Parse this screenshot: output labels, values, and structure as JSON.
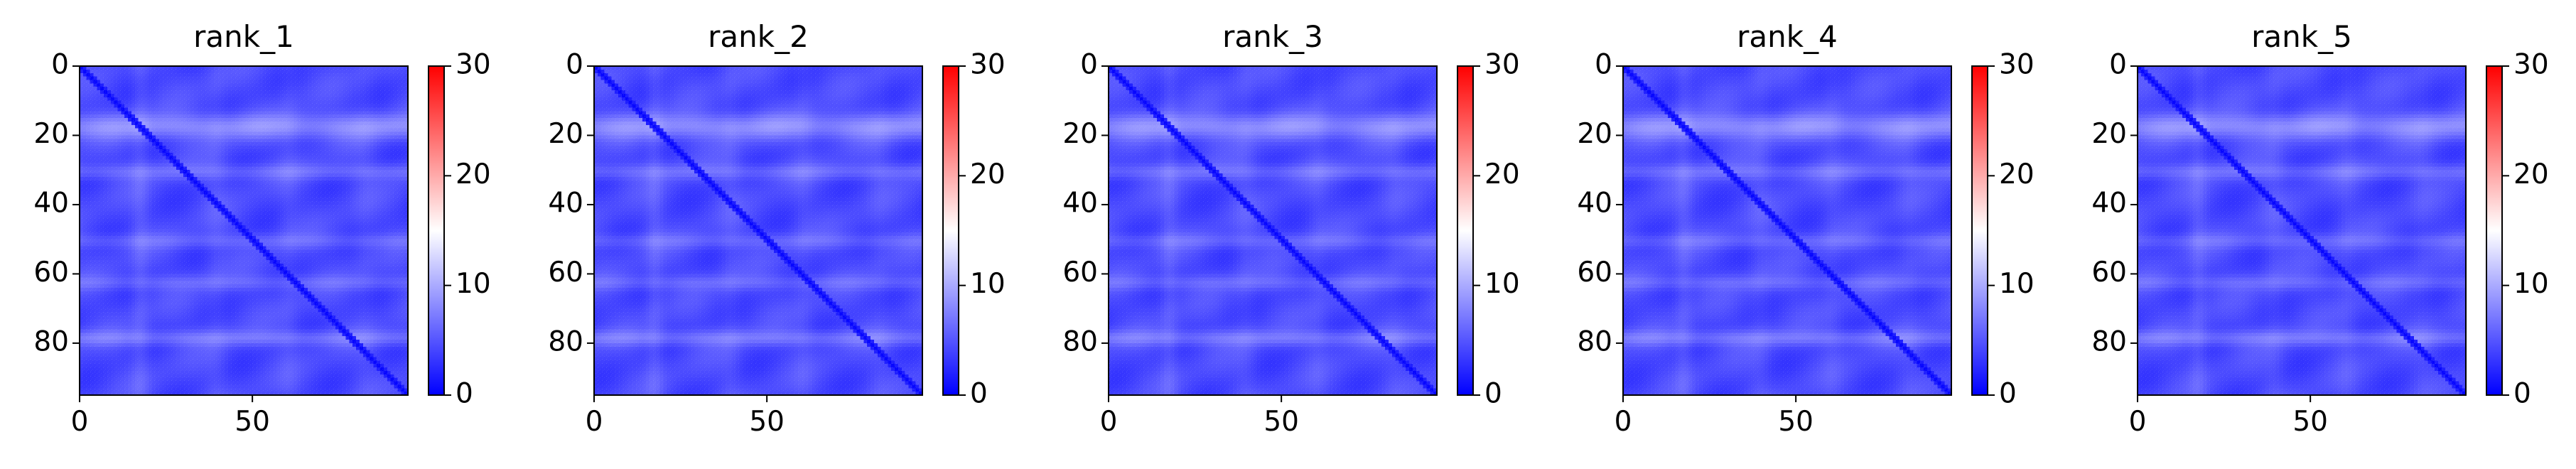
{
  "chart_data": [
    {
      "type": "heatmap",
      "title": "rank_1",
      "x_ticks": [
        "0",
        "50"
      ],
      "y_ticks": [
        "0",
        "20",
        "40",
        "60",
        "80"
      ],
      "x_tick_values": [
        0,
        50
      ],
      "y_tick_values": [
        0,
        20,
        40,
        60,
        80
      ],
      "xlim": [
        0,
        95
      ],
      "ylim": [
        95,
        0
      ],
      "colorbar": {
        "ticks": [
          "0",
          "10",
          "20",
          "30"
        ],
        "tick_values": [
          0,
          10,
          20,
          30
        ],
        "min": 0,
        "max": 30,
        "colormap": [
          "#0000ff",
          "#ffffff",
          "#ff0000"
        ]
      },
      "values_summary": "mostly low values (about 2 to 8) with lighter horizontal bands around rows 17, 30, 50, 62 and 78"
    },
    {
      "type": "heatmap",
      "title": "rank_2",
      "x_ticks": [
        "0",
        "50"
      ],
      "y_ticks": [
        "0",
        "20",
        "40",
        "60",
        "80"
      ],
      "x_tick_values": [
        0,
        50
      ],
      "y_tick_values": [
        0,
        20,
        40,
        60,
        80
      ],
      "xlim": [
        0,
        95
      ],
      "ylim": [
        95,
        0
      ],
      "colorbar": {
        "ticks": [
          "0",
          "10",
          "20",
          "30"
        ],
        "tick_values": [
          0,
          10,
          20,
          30
        ],
        "min": 0,
        "max": 30,
        "colormap": [
          "#0000ff",
          "#ffffff",
          "#ff0000"
        ]
      },
      "values_summary": "mostly low values (about 2 to 8) with lighter horizontal bands around rows 17, 30, 50, 62 and 78"
    },
    {
      "type": "heatmap",
      "title": "rank_3",
      "x_ticks": [
        "0",
        "50"
      ],
      "y_ticks": [
        "0",
        "20",
        "40",
        "60",
        "80"
      ],
      "x_tick_values": [
        0,
        50
      ],
      "y_tick_values": [
        0,
        20,
        40,
        60,
        80
      ],
      "xlim": [
        0,
        95
      ],
      "ylim": [
        95,
        0
      ],
      "colorbar": {
        "ticks": [
          "0",
          "10",
          "20",
          "30"
        ],
        "tick_values": [
          0,
          10,
          20,
          30
        ],
        "min": 0,
        "max": 30,
        "colormap": [
          "#0000ff",
          "#ffffff",
          "#ff0000"
        ]
      },
      "values_summary": "mostly low values (about 2 to 8) with lighter horizontal bands around rows 17, 30, 50, 62 and 78"
    },
    {
      "type": "heatmap",
      "title": "rank_4",
      "x_ticks": [
        "0",
        "50"
      ],
      "y_ticks": [
        "0",
        "20",
        "40",
        "60",
        "80"
      ],
      "x_tick_values": [
        0,
        50
      ],
      "y_tick_values": [
        0,
        20,
        40,
        60,
        80
      ],
      "xlim": [
        0,
        95
      ],
      "ylim": [
        95,
        0
      ],
      "colorbar": {
        "ticks": [
          "0",
          "10",
          "20",
          "30"
        ],
        "tick_values": [
          0,
          10,
          20,
          30
        ],
        "min": 0,
        "max": 30,
        "colormap": [
          "#0000ff",
          "#ffffff",
          "#ff0000"
        ]
      },
      "values_summary": "mostly low values (about 2 to 8) with lighter horizontal bands around rows 17, 30, 50, 62 and 78"
    },
    {
      "type": "heatmap",
      "title": "rank_5",
      "x_ticks": [
        "0",
        "50"
      ],
      "y_ticks": [
        "0",
        "20",
        "40",
        "60",
        "80"
      ],
      "x_tick_values": [
        0,
        50
      ],
      "y_tick_values": [
        0,
        20,
        40,
        60,
        80
      ],
      "xlim": [
        0,
        95
      ],
      "ylim": [
        95,
        0
      ],
      "colorbar": {
        "ticks": [
          "0",
          "10",
          "20",
          "30"
        ],
        "tick_values": [
          0,
          10,
          20,
          30
        ],
        "min": 0,
        "max": 30,
        "colormap": [
          "#0000ff",
          "#ffffff",
          "#ff0000"
        ]
      },
      "values_summary": "mostly low values (about 2 to 8) with lighter horizontal bands around rows 17, 30, 50, 62 and 78"
    }
  ]
}
